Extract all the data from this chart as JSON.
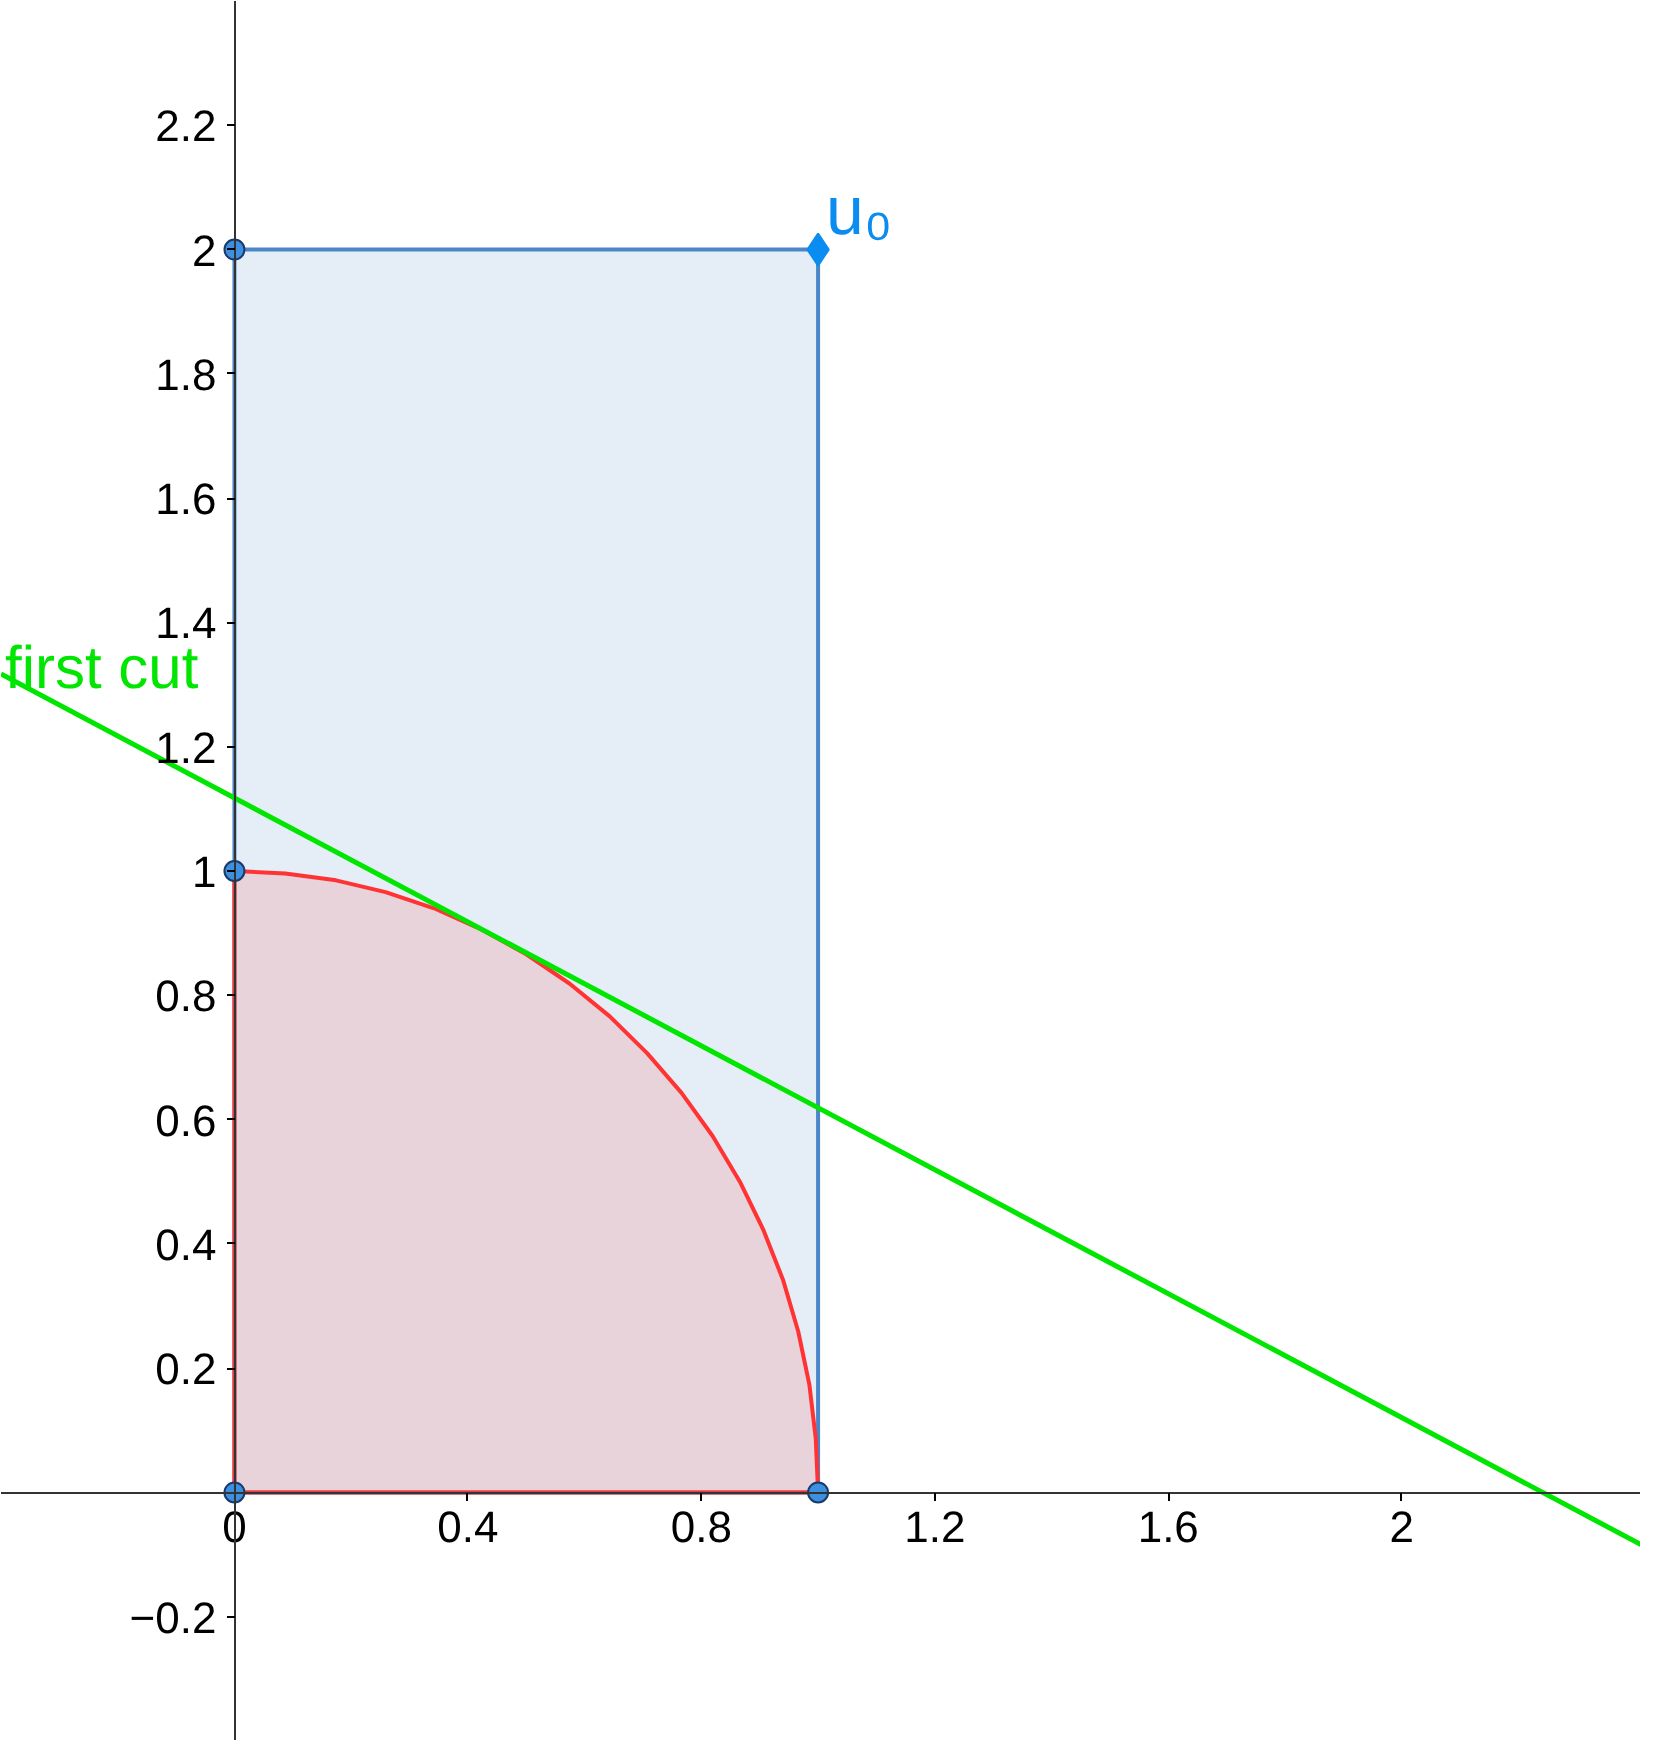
{
  "chart_data": {
    "type": "line",
    "xlim": [
      -0.4,
      2.41
    ],
    "ylim": [
      -0.4,
      2.4
    ],
    "xticks": [
      0,
      0.4,
      0.8,
      1.2,
      1.6,
      2
    ],
    "yticks": [
      -0.2,
      0.2,
      0.4,
      0.6,
      0.8,
      1,
      1.2,
      1.4,
      1.6,
      1.8,
      2,
      2.2
    ],
    "grid": false,
    "series": [
      {
        "type": "area",
        "color": "#4a86c8",
        "x": [
          0,
          1
        ],
        "values": [
          2,
          2
        ]
      },
      {
        "type": "area",
        "color": "#ff3333",
        "x": [
          0,
          0.087,
          0.174,
          0.259,
          0.342,
          0.423,
          0.5,
          0.574,
          0.643,
          0.707,
          0.766,
          0.819,
          0.866,
          0.906,
          0.94,
          0.966,
          0.985,
          0.996,
          1
        ],
        "values": [
          1,
          0.996,
          0.985,
          0.966,
          0.94,
          0.906,
          0.866,
          0.819,
          0.766,
          0.707,
          0.643,
          0.574,
          0.5,
          0.423,
          0.342,
          0.259,
          0.174,
          0.087,
          0
        ]
      },
      {
        "name": "first cut",
        "color": "#00e600",
        "x": [
          -0.4,
          2.41
        ],
        "values": [
          1.317,
          -0.084
        ]
      },
      {
        "type": "scatter",
        "marker": "circle",
        "color": "#3d8fe0",
        "x": [
          0,
          0,
          0,
          1
        ],
        "values": [
          2,
          1,
          0,
          0
        ]
      },
      {
        "type": "scatter",
        "marker": "diamond",
        "name": "u₀",
        "color": "#0a8cf0",
        "x": [
          1
        ],
        "values": [
          2
        ]
      }
    ]
  }
}
